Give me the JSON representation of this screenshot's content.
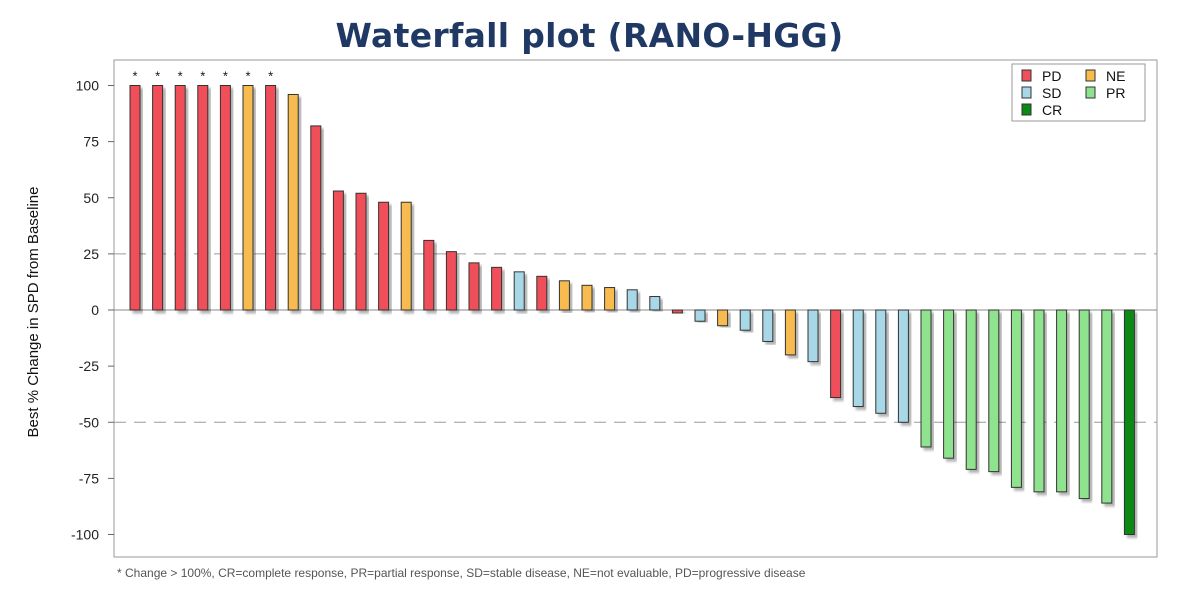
{
  "chart_data": {
    "type": "bar",
    "title": "Waterfall plot (RANO-HGG)",
    "xlabel": "",
    "ylabel": "Best % Change in SPD from Baseline",
    "ylim": [
      -110,
      110
    ],
    "yticks": [
      100,
      75,
      50,
      25,
      0,
      -25,
      -50,
      -75,
      -100
    ],
    "reference_lines": [
      25,
      -50
    ],
    "grid": false,
    "legend_position": "top-right",
    "legend": [
      {
        "code": "PD",
        "color": "#f0505a"
      },
      {
        "code": "NE",
        "color": "#f7bb50"
      },
      {
        "code": "SD",
        "color": "#a8d8e8"
      },
      {
        "code": "PR",
        "color": "#8fe38f"
      },
      {
        "code": "CR",
        "color": "#0a8a14"
      }
    ],
    "asterisk_marker": "*",
    "values": [
      100,
      100,
      100,
      100,
      100,
      100,
      100,
      96,
      82,
      53,
      52,
      48,
      48,
      31,
      26,
      21,
      19,
      17,
      15,
      13,
      11,
      10,
      9,
      6,
      -1,
      -5,
      -7,
      -9,
      -14,
      -20,
      -23,
      -39,
      -43,
      -46,
      -50,
      -61,
      -66,
      -71,
      -72,
      -79,
      -81,
      -81,
      -84,
      -86,
      -100
    ],
    "response": [
      "PD",
      "PD",
      "PD",
      "PD",
      "PD",
      "NE",
      "PD",
      "NE",
      "PD",
      "PD",
      "PD",
      "PD",
      "NE",
      "PD",
      "PD",
      "PD",
      "PD",
      "SD",
      "PD",
      "NE",
      "NE",
      "NE",
      "SD",
      "SD",
      "PD",
      "SD",
      "NE",
      "SD",
      "SD",
      "NE",
      "SD",
      "PD",
      "SD",
      "SD",
      "SD",
      "PR",
      "PR",
      "PR",
      "PR",
      "PR",
      "PR",
      "PR",
      "PR",
      "PR",
      "CR"
    ],
    "capped": [
      true,
      true,
      true,
      true,
      true,
      true,
      true,
      false,
      false,
      false,
      false,
      false,
      false,
      false,
      false,
      false,
      false,
      false,
      false,
      false,
      false,
      false,
      false,
      false,
      false,
      false,
      false,
      false,
      false,
      false,
      false,
      false,
      false,
      false,
      false,
      false,
      false,
      false,
      false,
      false,
      false,
      false,
      false,
      false,
      false
    ],
    "footnote": "* Change > 100%, CR=complete response, PR=partial response, SD=stable disease, NE=not evaluable, PD=progressive disease"
  }
}
